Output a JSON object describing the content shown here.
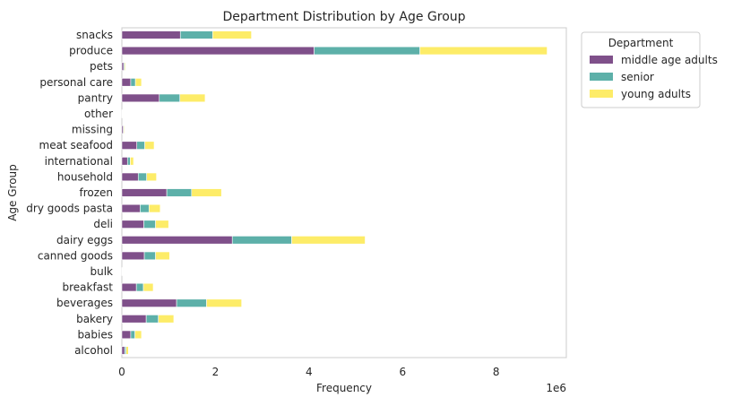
{
  "chart_data": {
    "type": "bar",
    "orientation": "horizontal",
    "stacked": true,
    "title": "Department Distribution by Age Group",
    "xlabel": "Frequency",
    "ylabel": "Age Group",
    "x_offset_label": "1e6",
    "xlim": [
      0,
      9.5
    ],
    "xticks": [
      "0",
      "2",
      "4",
      "6",
      "8"
    ],
    "xtick_values": [
      0,
      2,
      4,
      6,
      8
    ],
    "grid": false,
    "legend": {
      "title": "Department",
      "position": "outside-top-right"
    },
    "categories": [
      "alcohol",
      "babies",
      "bakery",
      "beverages",
      "breakfast",
      "bulk",
      "canned goods",
      "dairy eggs",
      "deli",
      "dry goods pasta",
      "frozen",
      "household",
      "international",
      "meat seafood",
      "missing",
      "other",
      "pantry",
      "personal care",
      "pets",
      "produce",
      "snacks"
    ],
    "series": [
      {
        "name": "middle age adults",
        "color": "#5b1f69",
        "values": [
          0.06,
          0.19,
          0.52,
          1.17,
          0.31,
          0.01,
          0.48,
          2.36,
          0.47,
          0.39,
          0.96,
          0.35,
          0.12,
          0.32,
          0.03,
          0.01,
          0.8,
          0.19,
          0.04,
          4.11,
          1.25
        ]
      },
      {
        "name": "senior",
        "color": "#2f9a91",
        "values": [
          0.03,
          0.09,
          0.26,
          0.64,
          0.15,
          0.005,
          0.24,
          1.27,
          0.25,
          0.19,
          0.53,
          0.18,
          0.06,
          0.17,
          0.015,
          0.005,
          0.44,
          0.1,
          0.02,
          2.26,
          0.69
        ]
      },
      {
        "name": "young adults",
        "color": "#fde73d",
        "values": [
          0.05,
          0.14,
          0.33,
          0.75,
          0.21,
          0.005,
          0.3,
          1.57,
          0.28,
          0.24,
          0.64,
          0.21,
          0.07,
          0.2,
          0.015,
          0.005,
          0.54,
          0.13,
          0.02,
          2.72,
          0.83
        ]
      }
    ]
  }
}
